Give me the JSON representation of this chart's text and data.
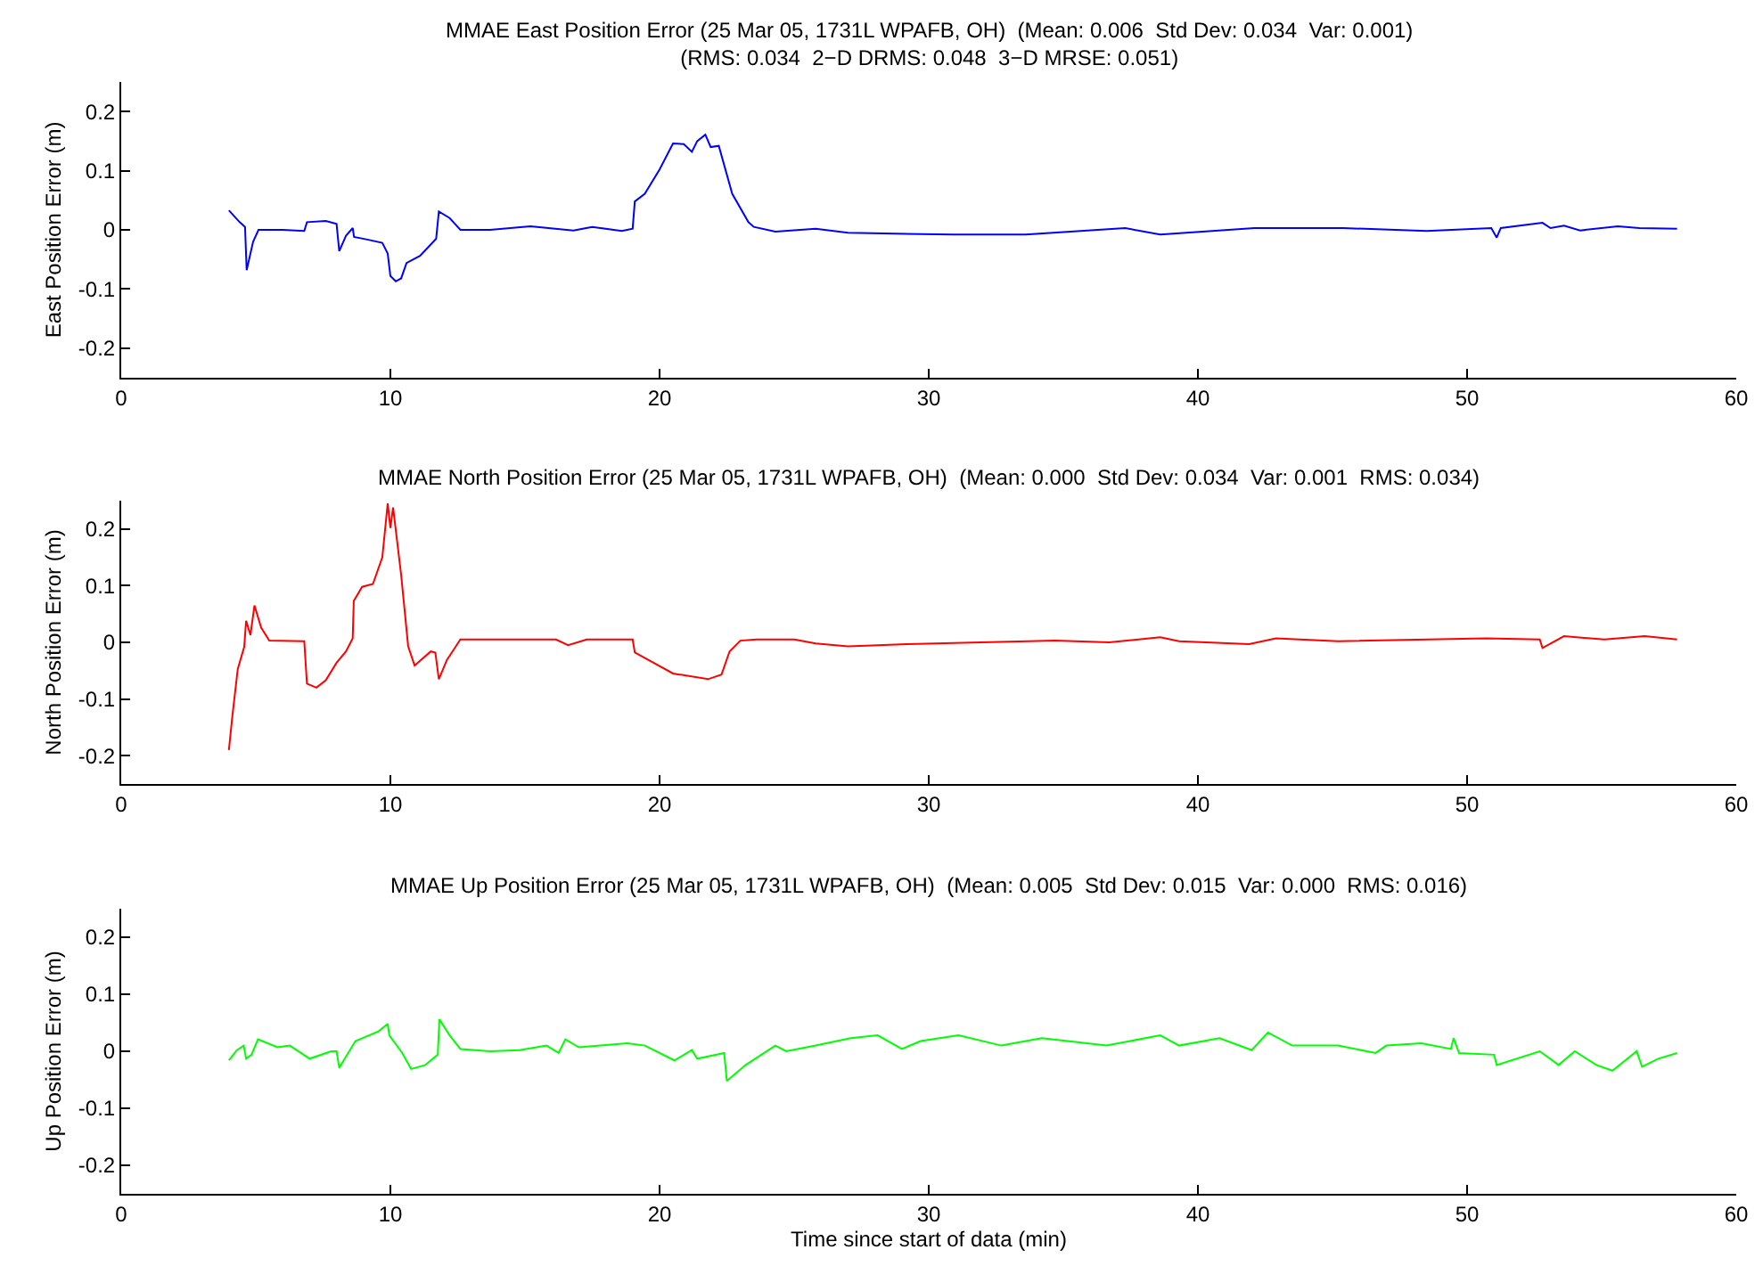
{
  "chart_data": [
    {
      "type": "line",
      "title": "MMAE East Position Error (25 Mar 05, 1731L WPAFB, OH)  (Mean: 0.006  Std Dev: 0.034  Var: 0.001)",
      "subtitle": "(RMS: 0.034  2−D DRMS: 0.048  3−D MRSE: 0.051)",
      "ylabel": "East Position Error (m)",
      "xlim": [
        0,
        60
      ],
      "xticks": [
        0,
        10,
        20,
        30,
        40,
        50,
        60
      ],
      "ylim": [
        -0.25,
        0.25
      ],
      "yticks": [
        -0.2,
        -0.1,
        0,
        0.1,
        0.2
      ],
      "line_style": "solid",
      "series": [
        {
          "color": "#0000ff",
          "x": [
            4.0,
            4.4,
            4.6,
            4.66,
            4.9,
            5.1,
            6.0,
            6.8,
            6.9,
            7.6,
            8.0,
            8.1,
            8.35,
            8.6,
            8.65,
            9.1,
            9.7,
            9.9,
            10.0,
            10.2,
            10.4,
            10.6,
            11.1,
            11.7,
            11.8,
            12.2,
            12.6,
            13.7,
            15.2,
            16.8,
            17.5,
            18.6,
            19.0,
            19.08,
            19.45,
            20.0,
            20.5,
            20.9,
            21.2,
            21.4,
            21.7,
            21.9,
            22.2,
            22.7,
            23.3,
            23.5,
            24.3,
            25.8,
            27.0,
            30.9,
            33.6,
            37.3,
            38.6,
            42.1,
            45.4,
            48.5,
            50.9,
            51.1,
            51.25,
            52.8,
            53.1,
            53.6,
            54.2,
            55.6,
            56.4,
            57.8
          ],
          "values": [
            0.033,
            0.013,
            0.005,
            -0.068,
            -0.02,
            0.0,
            0.0,
            -0.002,
            0.013,
            0.015,
            0.01,
            -0.036,
            -0.01,
            0.003,
            -0.012,
            -0.016,
            -0.022,
            -0.04,
            -0.078,
            -0.087,
            -0.082,
            -0.056,
            -0.044,
            -0.015,
            0.031,
            0.02,
            0.0,
            0.0,
            0.006,
            -0.001,
            0.005,
            -0.002,
            0.002,
            0.048,
            0.061,
            0.102,
            0.146,
            0.145,
            0.132,
            0.15,
            0.161,
            0.14,
            0.142,
            0.061,
            0.013,
            0.005,
            -0.003,
            0.002,
            -0.005,
            -0.008,
            -0.008,
            0.003,
            -0.008,
            0.003,
            0.003,
            -0.002,
            0.003,
            -0.013,
            0.003,
            0.012,
            0.003,
            0.007,
            -0.001,
            0.006,
            0.003,
            0.002
          ]
        }
      ]
    },
    {
      "type": "line",
      "title": "MMAE North Position Error (25 Mar 05, 1731L WPAFB, OH)  (Mean: 0.000  Std Dev: 0.034  Var: 0.001  RMS: 0.034)",
      "ylabel": "North Position Error (m)",
      "xlim": [
        0,
        60
      ],
      "xticks": [
        0,
        10,
        20,
        30,
        40,
        50,
        60
      ],
      "ylim": [
        -0.25,
        0.25
      ],
      "yticks": [
        -0.2,
        -0.1,
        0,
        0.1,
        0.2
      ],
      "line_style": "solid",
      "series": [
        {
          "color": "#ff0000",
          "x": [
            4.0,
            4.13,
            4.33,
            4.57,
            4.64,
            4.8,
            4.95,
            5.2,
            5.5,
            6.8,
            6.9,
            7.25,
            7.6,
            8.0,
            8.35,
            8.6,
            8.64,
            8.95,
            9.35,
            9.7,
            9.9,
            10.0,
            10.1,
            10.4,
            10.66,
            10.9,
            11.5,
            11.67,
            11.8,
            12.1,
            12.6,
            14.8,
            16.15,
            16.6,
            17.3,
            19.0,
            19.08,
            20.5,
            21.8,
            22.3,
            22.6,
            23.0,
            23.6,
            25.0,
            25.8,
            27.0,
            29.2,
            34.7,
            36.7,
            38.6,
            39.3,
            41.9,
            42.9,
            45.2,
            50.7,
            52.7,
            52.8,
            53.6,
            55.1,
            56.6,
            57.8
          ],
          "values": [
            -0.19,
            -0.13,
            -0.047,
            -0.008,
            0.038,
            0.013,
            0.065,
            0.026,
            0.003,
            0.002,
            -0.073,
            -0.08,
            -0.067,
            -0.036,
            -0.016,
            0.007,
            0.073,
            0.098,
            0.103,
            0.15,
            0.245,
            0.202,
            0.238,
            0.119,
            -0.007,
            -0.041,
            -0.016,
            -0.018,
            -0.065,
            -0.031,
            0.005,
            0.005,
            0.005,
            -0.005,
            0.005,
            0.005,
            -0.018,
            -0.055,
            -0.065,
            -0.057,
            -0.016,
            0.003,
            0.005,
            0.005,
            -0.002,
            -0.007,
            -0.003,
            0.003,
            0.0,
            0.009,
            0.002,
            -0.003,
            0.007,
            0.002,
            0.007,
            0.005,
            -0.01,
            0.011,
            0.005,
            0.011,
            0.005
          ]
        }
      ]
    },
    {
      "type": "line",
      "title": "MMAE Up Position Error (25 Mar 05, 1731L WPAFB, OH)  (Mean: 0.005  Std Dev: 0.015  Var: 0.000  RMS: 0.016)",
      "ylabel": "Up Position Error (m)",
      "xlabel": "Time since start of data (min)",
      "xlim": [
        0,
        60
      ],
      "xticks": [
        0,
        10,
        20,
        30,
        40,
        50,
        60
      ],
      "ylim": [
        -0.25,
        0.25
      ],
      "yticks": [
        -0.2,
        -0.1,
        0,
        0.1,
        0.2
      ],
      "line_style": "solid",
      "series": [
        {
          "color": "#00ff00",
          "x": [
            4.0,
            4.3,
            4.55,
            4.64,
            4.84,
            5.08,
            5.8,
            6.26,
            7.0,
            7.8,
            8.0,
            8.1,
            8.7,
            9.56,
            9.9,
            9.96,
            10.44,
            10.77,
            11.3,
            11.76,
            11.82,
            12.2,
            12.6,
            13.7,
            14.8,
            15.8,
            16.25,
            16.5,
            17.0,
            18.8,
            19.45,
            20.55,
            21.2,
            21.4,
            22.4,
            22.5,
            23.2,
            24.3,
            24.7,
            25.8,
            27.1,
            28.1,
            29.0,
            29.7,
            31.1,
            32.7,
            34.2,
            36.6,
            38.6,
            39.3,
            40.8,
            42.0,
            42.6,
            43.5,
            45.2,
            46.6,
            47.0,
            48.3,
            49.4,
            49.5,
            49.7,
            51.0,
            51.1,
            52.7,
            53.4,
            54.0,
            54.8,
            55.4,
            56.3,
            56.5,
            57.1,
            57.8
          ],
          "values": [
            -0.016,
            0.002,
            0.01,
            -0.013,
            -0.006,
            0.021,
            0.007,
            0.01,
            -0.013,
            0.0,
            0.0,
            -0.029,
            0.018,
            0.035,
            0.048,
            0.028,
            -0.003,
            -0.031,
            -0.024,
            -0.006,
            0.056,
            0.028,
            0.004,
            0.0,
            0.002,
            0.01,
            -0.003,
            0.021,
            0.007,
            0.014,
            0.01,
            -0.016,
            0.002,
            -0.013,
            -0.003,
            -0.052,
            -0.024,
            0.01,
            0.0,
            0.01,
            0.023,
            0.028,
            0.004,
            0.018,
            0.028,
            0.01,
            0.023,
            0.01,
            0.028,
            0.01,
            0.023,
            0.002,
            0.033,
            0.01,
            0.01,
            -0.003,
            0.01,
            0.014,
            0.004,
            0.023,
            -0.003,
            -0.006,
            -0.024,
            0.0,
            -0.024,
            0.0,
            -0.024,
            -0.034,
            0.0,
            -0.027,
            -0.013,
            -0.003
          ]
        }
      ]
    }
  ]
}
